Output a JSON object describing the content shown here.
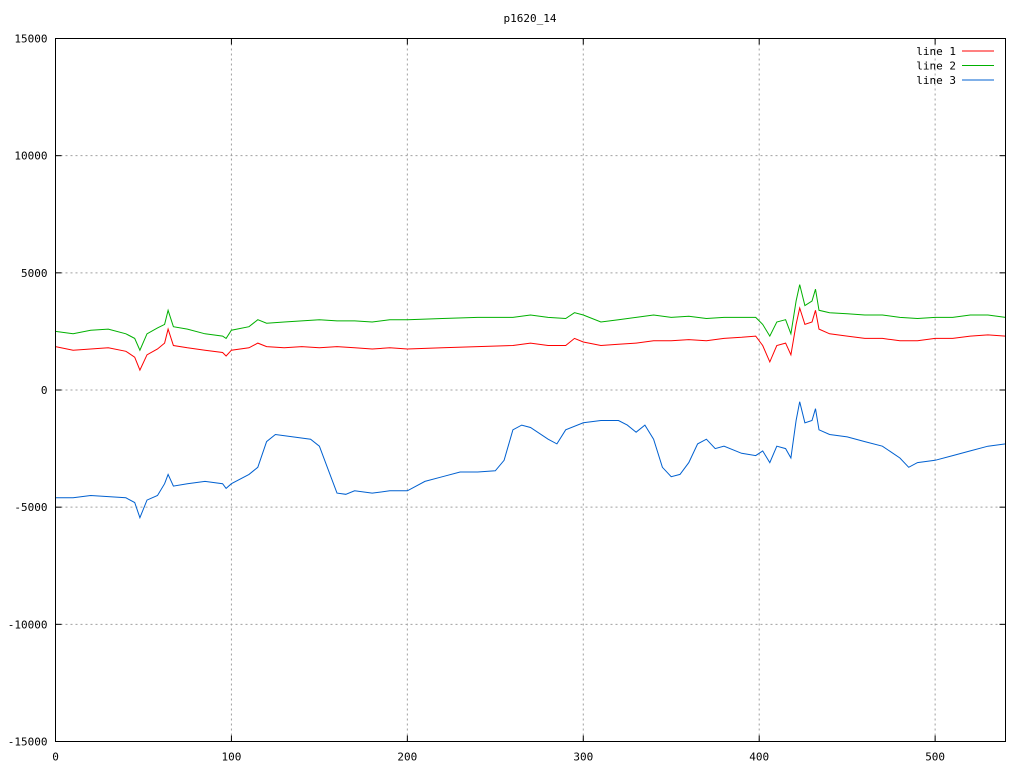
{
  "chart_data": {
    "type": "line",
    "title": "p1620_14",
    "xlabel": "",
    "ylabel": "",
    "xlim": [
      0,
      540
    ],
    "ylim": [
      -15000,
      15000
    ],
    "xticks": [
      0,
      100,
      200,
      300,
      400,
      500
    ],
    "yticks": [
      -15000,
      -10000,
      -5000,
      0,
      5000,
      10000,
      15000
    ],
    "grid": true,
    "legend_position": "top-right",
    "series": [
      {
        "name": "line 1",
        "color": "#ff0000",
        "points": [
          [
            0,
            1850
          ],
          [
            10,
            1700
          ],
          [
            20,
            1750
          ],
          [
            30,
            1800
          ],
          [
            40,
            1650
          ],
          [
            45,
            1400
          ],
          [
            48,
            850
          ],
          [
            52,
            1500
          ],
          [
            58,
            1750
          ],
          [
            62,
            2000
          ],
          [
            64,
            2600
          ],
          [
            67,
            1900
          ],
          [
            75,
            1800
          ],
          [
            85,
            1700
          ],
          [
            95,
            1600
          ],
          [
            97,
            1450
          ],
          [
            100,
            1700
          ],
          [
            110,
            1800
          ],
          [
            115,
            2000
          ],
          [
            120,
            1850
          ],
          [
            130,
            1800
          ],
          [
            140,
            1850
          ],
          [
            150,
            1800
          ],
          [
            160,
            1850
          ],
          [
            170,
            1800
          ],
          [
            180,
            1750
          ],
          [
            190,
            1800
          ],
          [
            200,
            1750
          ],
          [
            220,
            1800
          ],
          [
            240,
            1850
          ],
          [
            260,
            1900
          ],
          [
            270,
            2000
          ],
          [
            280,
            1900
          ],
          [
            290,
            1900
          ],
          [
            295,
            2200
          ],
          [
            300,
            2050
          ],
          [
            310,
            1900
          ],
          [
            320,
            1950
          ],
          [
            330,
            2000
          ],
          [
            340,
            2100
          ],
          [
            350,
            2100
          ],
          [
            360,
            2150
          ],
          [
            370,
            2100
          ],
          [
            380,
            2200
          ],
          [
            390,
            2250
          ],
          [
            398,
            2300
          ],
          [
            402,
            1900
          ],
          [
            406,
            1200
          ],
          [
            410,
            1900
          ],
          [
            415,
            2000
          ],
          [
            418,
            1500
          ],
          [
            421,
            2800
          ],
          [
            423,
            3500
          ],
          [
            426,
            2800
          ],
          [
            430,
            2900
          ],
          [
            432,
            3400
          ],
          [
            434,
            2600
          ],
          [
            440,
            2400
          ],
          [
            450,
            2300
          ],
          [
            460,
            2200
          ],
          [
            470,
            2200
          ],
          [
            480,
            2100
          ],
          [
            490,
            2100
          ],
          [
            500,
            2200
          ],
          [
            510,
            2200
          ],
          [
            520,
            2300
          ],
          [
            530,
            2350
          ],
          [
            540,
            2300
          ]
        ]
      },
      {
        "name": "line 2",
        "color": "#00b000",
        "points": [
          [
            0,
            2500
          ],
          [
            10,
            2400
          ],
          [
            20,
            2550
          ],
          [
            30,
            2600
          ],
          [
            40,
            2400
          ],
          [
            45,
            2200
          ],
          [
            48,
            1700
          ],
          [
            52,
            2400
          ],
          [
            58,
            2650
          ],
          [
            62,
            2800
          ],
          [
            64,
            3400
          ],
          [
            67,
            2700
          ],
          [
            75,
            2600
          ],
          [
            85,
            2400
          ],
          [
            95,
            2300
          ],
          [
            97,
            2200
          ],
          [
            100,
            2550
          ],
          [
            110,
            2700
          ],
          [
            115,
            3000
          ],
          [
            120,
            2850
          ],
          [
            130,
            2900
          ],
          [
            140,
            2950
          ],
          [
            150,
            3000
          ],
          [
            160,
            2950
          ],
          [
            170,
            2950
          ],
          [
            180,
            2900
          ],
          [
            190,
            3000
          ],
          [
            200,
            3000
          ],
          [
            220,
            3050
          ],
          [
            240,
            3100
          ],
          [
            260,
            3100
          ],
          [
            270,
            3200
          ],
          [
            280,
            3100
          ],
          [
            290,
            3050
          ],
          [
            295,
            3300
          ],
          [
            300,
            3200
          ],
          [
            310,
            2900
          ],
          [
            320,
            3000
          ],
          [
            330,
            3100
          ],
          [
            340,
            3200
          ],
          [
            350,
            3100
          ],
          [
            360,
            3150
          ],
          [
            370,
            3050
          ],
          [
            380,
            3100
          ],
          [
            390,
            3100
          ],
          [
            398,
            3100
          ],
          [
            402,
            2800
          ],
          [
            406,
            2300
          ],
          [
            410,
            2900
          ],
          [
            415,
            3000
          ],
          [
            418,
            2400
          ],
          [
            421,
            3800
          ],
          [
            423,
            4500
          ],
          [
            426,
            3600
          ],
          [
            430,
            3800
          ],
          [
            432,
            4300
          ],
          [
            434,
            3400
          ],
          [
            440,
            3300
          ],
          [
            450,
            3250
          ],
          [
            460,
            3200
          ],
          [
            470,
            3200
          ],
          [
            480,
            3100
          ],
          [
            490,
            3050
          ],
          [
            500,
            3100
          ],
          [
            510,
            3100
          ],
          [
            520,
            3200
          ],
          [
            530,
            3200
          ],
          [
            540,
            3100
          ]
        ]
      },
      {
        "name": "line 3",
        "color": "#0060d0",
        "points": [
          [
            0,
            -4600
          ],
          [
            10,
            -4600
          ],
          [
            20,
            -4500
          ],
          [
            30,
            -4550
          ],
          [
            40,
            -4600
          ],
          [
            45,
            -4800
          ],
          [
            48,
            -5450
          ],
          [
            52,
            -4700
          ],
          [
            58,
            -4500
          ],
          [
            62,
            -4000
          ],
          [
            64,
            -3600
          ],
          [
            67,
            -4100
          ],
          [
            75,
            -4000
          ],
          [
            85,
            -3900
          ],
          [
            95,
            -4000
          ],
          [
            97,
            -4200
          ],
          [
            100,
            -4000
          ],
          [
            110,
            -3600
          ],
          [
            115,
            -3300
          ],
          [
            120,
            -2200
          ],
          [
            125,
            -1900
          ],
          [
            135,
            -2000
          ],
          [
            145,
            -2100
          ],
          [
            150,
            -2400
          ],
          [
            155,
            -3400
          ],
          [
            160,
            -4400
          ],
          [
            165,
            -4450
          ],
          [
            170,
            -4300
          ],
          [
            180,
            -4400
          ],
          [
            190,
            -4300
          ],
          [
            200,
            -4300
          ],
          [
            210,
            -3900
          ],
          [
            220,
            -3700
          ],
          [
            230,
            -3500
          ],
          [
            240,
            -3500
          ],
          [
            250,
            -3450
          ],
          [
            255,
            -3000
          ],
          [
            260,
            -1700
          ],
          [
            265,
            -1500
          ],
          [
            270,
            -1600
          ],
          [
            280,
            -2100
          ],
          [
            285,
            -2300
          ],
          [
            290,
            -1700
          ],
          [
            300,
            -1400
          ],
          [
            310,
            -1300
          ],
          [
            320,
            -1300
          ],
          [
            325,
            -1500
          ],
          [
            330,
            -1800
          ],
          [
            335,
            -1500
          ],
          [
            340,
            -2100
          ],
          [
            345,
            -3300
          ],
          [
            350,
            -3700
          ],
          [
            355,
            -3600
          ],
          [
            360,
            -3100
          ],
          [
            365,
            -2300
          ],
          [
            370,
            -2100
          ],
          [
            375,
            -2500
          ],
          [
            380,
            -2400
          ],
          [
            390,
            -2700
          ],
          [
            398,
            -2800
          ],
          [
            402,
            -2600
          ],
          [
            406,
            -3100
          ],
          [
            410,
            -2400
          ],
          [
            415,
            -2500
          ],
          [
            418,
            -2900
          ],
          [
            421,
            -1300
          ],
          [
            423,
            -500
          ],
          [
            426,
            -1400
          ],
          [
            430,
            -1300
          ],
          [
            432,
            -800
          ],
          [
            434,
            -1700
          ],
          [
            440,
            -1900
          ],
          [
            450,
            -2000
          ],
          [
            460,
            -2200
          ],
          [
            470,
            -2400
          ],
          [
            480,
            -2900
          ],
          [
            485,
            -3300
          ],
          [
            490,
            -3100
          ],
          [
            500,
            -3000
          ],
          [
            510,
            -2800
          ],
          [
            520,
            -2600
          ],
          [
            530,
            -2400
          ],
          [
            540,
            -2300
          ]
        ]
      }
    ]
  }
}
